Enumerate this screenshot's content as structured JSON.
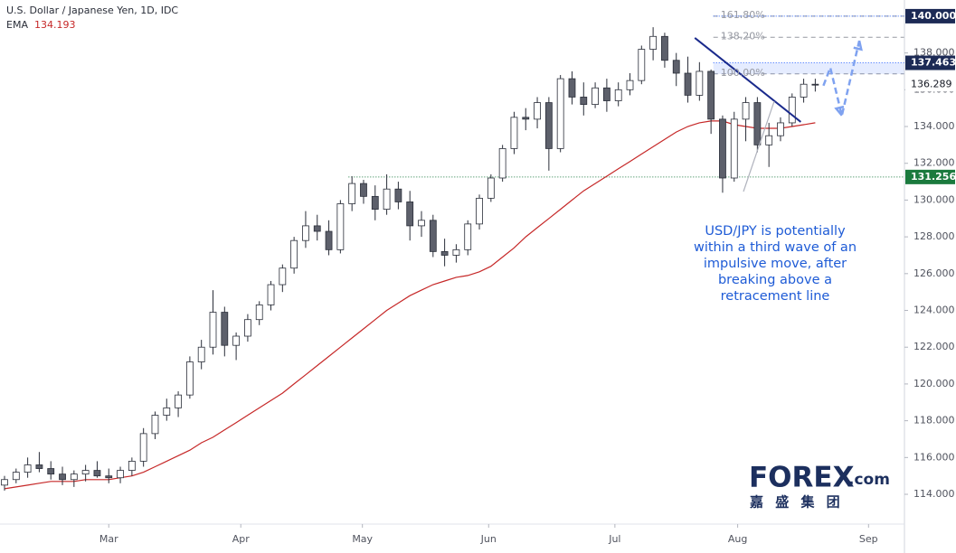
{
  "chart_data": {
    "type": "candlestick",
    "title": "U.S. Dollar / Japanese Yen, 1D, IDC",
    "ema": {
      "name": "EMA",
      "value_label": "134.193",
      "color": "#c62828",
      "values": [
        114.3,
        114.4,
        114.5,
        114.6,
        114.7,
        114.7,
        114.7,
        114.8,
        114.8,
        114.8,
        114.9,
        115.0,
        115.2,
        115.5,
        115.8,
        116.1,
        116.4,
        116.8,
        117.1,
        117.5,
        117.9,
        118.3,
        118.7,
        119.1,
        119.5,
        120.0,
        120.5,
        121.0,
        121.5,
        122.0,
        122.5,
        123.0,
        123.5,
        124.0,
        124.4,
        124.8,
        125.1,
        125.4,
        125.6,
        125.8,
        125.9,
        126.1,
        126.4,
        126.9,
        127.4,
        128.0,
        128.5,
        129.0,
        129.5,
        130.0,
        130.5,
        130.9,
        131.3,
        131.7,
        132.1,
        132.5,
        132.9,
        133.3,
        133.7,
        134.0,
        134.2,
        134.3,
        134.3,
        134.1,
        134.0,
        133.9,
        133.9,
        133.9,
        134.0,
        134.1,
        134.2
      ]
    },
    "open": [
      114.5,
      114.8,
      115.2,
      115.6,
      115.4,
      115.1,
      114.8,
      115.1,
      115.3,
      115.0,
      114.9,
      115.3,
      115.8,
      117.3,
      118.3,
      118.7,
      119.4,
      121.2,
      122.0,
      123.9,
      122.1,
      122.6,
      123.5,
      124.3,
      125.4,
      126.3,
      127.8,
      128.6,
      128.3,
      127.3,
      129.8,
      130.9,
      130.2,
      129.5,
      130.6,
      129.9,
      128.6,
      128.9,
      127.2,
      127.0,
      127.3,
      128.7,
      130.1,
      131.2,
      132.8,
      134.5,
      134.4,
      135.3,
      132.8,
      136.6,
      135.6,
      135.2,
      136.1,
      135.4,
      136.0,
      136.5,
      138.2,
      138.9,
      137.6,
      136.9,
      135.7,
      137.0,
      134.4,
      131.2,
      134.4,
      135.3,
      133.0,
      133.5,
      134.2,
      135.6,
      136.3
    ],
    "high": [
      115.0,
      115.4,
      116.0,
      116.3,
      115.8,
      115.5,
      115.3,
      115.6,
      115.8,
      115.4,
      115.5,
      116.0,
      117.6,
      118.5,
      119.2,
      119.6,
      121.5,
      122.4,
      125.1,
      124.2,
      122.8,
      123.8,
      124.5,
      125.6,
      126.5,
      128.0,
      129.4,
      129.2,
      128.9,
      130.0,
      131.3,
      131.1,
      130.8,
      131.4,
      131.0,
      130.5,
      129.4,
      129.2,
      127.9,
      127.6,
      128.9,
      130.3,
      131.4,
      133.0,
      134.8,
      135.0,
      135.6,
      135.6,
      136.8,
      137.0,
      136.4,
      136.4,
      136.6,
      136.4,
      136.9,
      138.4,
      139.4,
      139.1,
      138.0,
      137.8,
      137.5,
      137.1,
      134.6,
      134.8,
      135.6,
      135.6,
      134.2,
      134.5,
      135.8,
      136.6,
      136.6
    ],
    "low": [
      114.2,
      114.6,
      114.9,
      115.2,
      114.8,
      114.5,
      114.4,
      114.7,
      114.9,
      114.6,
      114.6,
      115.0,
      115.5,
      117.0,
      118.0,
      118.2,
      119.2,
      120.8,
      121.6,
      121.5,
      121.3,
      122.3,
      123.2,
      124.0,
      125.0,
      126.0,
      127.4,
      127.8,
      127.0,
      127.1,
      129.4,
      129.8,
      128.9,
      129.2,
      129.5,
      127.8,
      128.0,
      126.9,
      126.4,
      126.6,
      127.0,
      128.4,
      129.9,
      131.0,
      132.5,
      133.8,
      133.9,
      131.6,
      132.6,
      135.2,
      134.6,
      135.0,
      134.8,
      135.1,
      135.7,
      136.3,
      137.6,
      137.2,
      136.2,
      135.3,
      135.4,
      133.6,
      130.4,
      131.0,
      133.2,
      132.6,
      131.8,
      133.2,
      134.0,
      135.3,
      135.9
    ],
    "close": [
      114.8,
      115.2,
      115.6,
      115.4,
      115.1,
      114.8,
      115.1,
      115.3,
      115.0,
      114.9,
      115.3,
      115.8,
      117.3,
      118.3,
      118.7,
      119.4,
      121.2,
      122.0,
      123.9,
      122.1,
      122.6,
      123.5,
      124.3,
      125.4,
      126.3,
      127.8,
      128.6,
      128.3,
      127.3,
      129.8,
      130.9,
      130.2,
      129.5,
      130.6,
      129.9,
      128.6,
      128.9,
      127.2,
      127.0,
      127.3,
      128.7,
      130.1,
      131.2,
      132.8,
      134.5,
      134.4,
      135.3,
      132.8,
      136.6,
      135.6,
      135.2,
      136.1,
      135.4,
      136.0,
      136.5,
      138.2,
      138.9,
      137.6,
      136.9,
      135.7,
      137.0,
      134.4,
      131.2,
      134.4,
      135.3,
      133.0,
      133.5,
      134.2,
      135.6,
      136.3,
      136.289
    ],
    "up_color": "#ffffff",
    "down_color": "#5d606b",
    "wick_color": "#2a2e39",
    "xlim": [
      -0.39,
      77.7
    ],
    "xticks": [
      {
        "value": 9,
        "label": "Mar"
      },
      {
        "value": 20.4,
        "label": "Apr"
      },
      {
        "value": 30.9,
        "label": "May"
      },
      {
        "value": 41.8,
        "label": "Jun"
      },
      {
        "value": 52.7,
        "label": "Jul"
      },
      {
        "value": 63.3,
        "label": "Aug"
      },
      {
        "value": 74.6,
        "label": "Sep"
      }
    ],
    "ylim": [
      112.38,
      140.88
    ],
    "yticks": [
      {
        "value": 114,
        "label": "114.000"
      },
      {
        "value": 116,
        "label": "116.000"
      },
      {
        "value": 118,
        "label": "118.000"
      },
      {
        "value": 120,
        "label": "120.000"
      },
      {
        "value": 122,
        "label": "122.000"
      },
      {
        "value": 124,
        "label": "124.000"
      },
      {
        "value": 126,
        "label": "126.000"
      },
      {
        "value": 128,
        "label": "128.000"
      },
      {
        "value": 130,
        "label": "130.000"
      },
      {
        "value": 132,
        "label": "132.000"
      },
      {
        "value": 134,
        "label": "134.000"
      },
      {
        "value": 136,
        "label": "136.000"
      },
      {
        "value": 138,
        "label": "138.000"
      }
    ],
    "levels": [
      {
        "value": 140,
        "label": "140.000",
        "color": "#1c2a55",
        "x_start": 61.2
      },
      {
        "value": 137.463,
        "label": "137.463",
        "color": "#1c2a55",
        "x_start": 61.2
      },
      {
        "value": 136.289,
        "label": "136.289",
        "color": "#ffffff"
      },
      {
        "value": 131.256,
        "label": "131.256",
        "color": "#1b7a3e",
        "x_start": 29.7
      }
    ],
    "fib": [
      {
        "label": "161.80%",
        "price": 140.0
      },
      {
        "label": "138.20%",
        "price": 138.85
      },
      {
        "label": "100.00%",
        "price": 136.86
      }
    ],
    "fib_x_start": 61.2,
    "trendline": {
      "x": [
        59.6,
        68.75
      ],
      "y": [
        138.82,
        134.25
      ],
      "color": "#1a2a8c"
    },
    "projection": {
      "x": [
        70.7,
        71.3,
        72.3,
        73.8
      ],
      "y": [
        136.22,
        137.2,
        134.6,
        138.67
      ],
      "color": "#7fa2f0"
    },
    "annotation": [
      "USD/JPY is potentially",
      "within a third wave of an",
      "impulsive move, after",
      "breaking above a",
      "retracement line"
    ],
    "annotation_color": "#1e5bd6",
    "logo": {
      "brand": "FOREX",
      "suffix": ".com",
      "subtitle": "嘉 盛 集 团"
    }
  }
}
